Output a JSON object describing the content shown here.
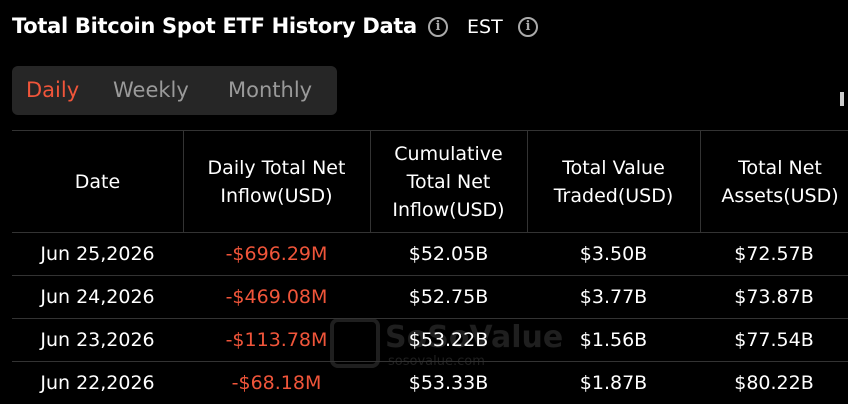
{
  "header": {
    "title": "Total Bitcoin Spot ETF History Data",
    "timezone": "EST"
  },
  "tabs": [
    "Daily",
    "Weekly",
    "Monthly"
  ],
  "table": {
    "columns": [
      "Date",
      "Daily Total Net Inflow(USD)",
      "Cumulative Total Net Inflow(USD)",
      "Total Value Traded(USD)",
      "Total Net Assets(USD)"
    ],
    "rows": [
      [
        "Jun 25,2026",
        "-$696.29M",
        "$52.05B",
        "$3.50B",
        "$72.57B"
      ],
      [
        "Jun 24,2026",
        "-$469.08M",
        "$52.75B",
        "$3.77B",
        "$73.87B"
      ],
      [
        "Jun 23,2026",
        "-$113.78M",
        "$53.22B",
        "$1.56B",
        "$77.54B"
      ],
      [
        "Jun 22,2026",
        "-$68.18M",
        "$53.33B",
        "$1.87B",
        "$80.22B"
      ]
    ]
  },
  "watermark": {
    "brand": "SoSoValue",
    "site": "sosovalue.com"
  }
}
